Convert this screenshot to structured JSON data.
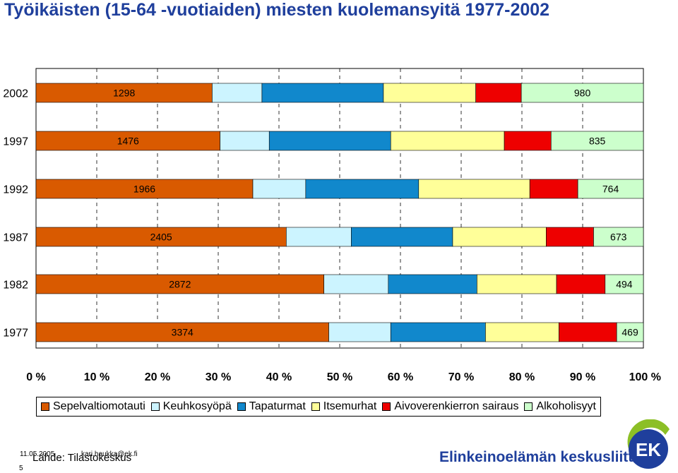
{
  "title": "Työikäisten (15-64 -vuotiaiden) miesten kuolemansyitä 1977-2002",
  "chart_data": {
    "type": "bar",
    "orientation": "horizontal",
    "stacked": "percent",
    "categories": [
      "2002",
      "1997",
      "1992",
      "1987",
      "1982",
      "1977"
    ],
    "series": [
      {
        "name": "Sepelvaltiomotauti",
        "color": "#d95a00",
        "values": [
          0.29,
          0.303,
          0.357,
          0.412,
          0.474,
          0.482
        ],
        "labels": [
          "1298",
          "1476",
          "1966",
          "2405",
          "2872",
          "3374"
        ]
      },
      {
        "name": "Keuhkosyöpä",
        "color": "#ccf4ff",
        "values": [
          0.082,
          0.081,
          0.087,
          0.107,
          0.106,
          0.102
        ]
      },
      {
        "name": "Tapaturmat",
        "color": "#1188cc",
        "values": [
          0.2,
          0.2,
          0.186,
          0.167,
          0.146,
          0.156
        ]
      },
      {
        "name": "Itsemurhat",
        "color": "#ffff99",
        "values": [
          0.152,
          0.187,
          0.183,
          0.154,
          0.131,
          0.121
        ]
      },
      {
        "name": "Aivoverenkierron sairaus",
        "color": "#ee0000",
        "values": [
          0.075,
          0.077,
          0.079,
          0.078,
          0.08,
          0.095
        ]
      },
      {
        "name": "Alkoholisyyt",
        "color": "#ccffcc",
        "values": [
          0.201,
          0.152,
          0.108,
          0.082,
          0.063,
          0.044
        ],
        "labels": [
          "980",
          "835",
          "764",
          "673",
          "494",
          "469"
        ]
      }
    ],
    "x_ticks": [
      "0 %",
      "10 %",
      "20 %",
      "30 %",
      "40 %",
      "50 %",
      "60 %",
      "70 %",
      "80 %",
      "90 %",
      "100 %"
    ],
    "xlim": [
      0,
      100
    ],
    "grid": true,
    "legend_position": "bottom"
  },
  "footer": {
    "date": "11.05.2005",
    "email": "kari.haukka@ek.fi",
    "source": "Lähde: Tilastokeskus",
    "page": "5",
    "brand": "Elinkeinoelämän keskusliitto",
    "logo_text": "EK"
  },
  "colors": {
    "title": "#1f3f9c",
    "brand": "#1f3f9c",
    "logo_green": "#8cbf26"
  }
}
